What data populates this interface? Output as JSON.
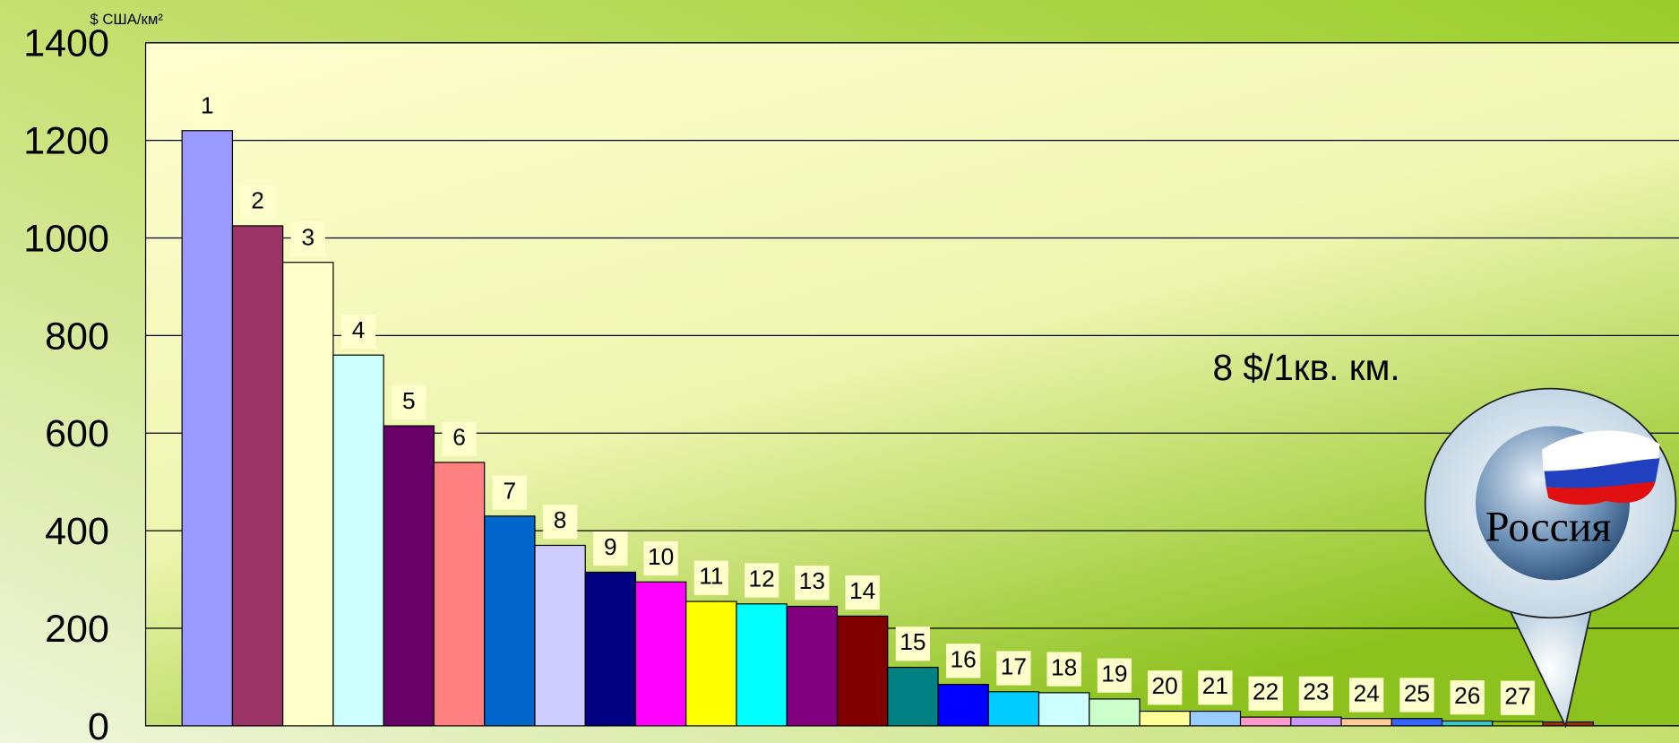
{
  "chart_data": {
    "type": "bar",
    "y_axis_label": "$ США/км²",
    "annotation": "8 $/1кв. км.",
    "callout": "Россия",
    "categories": [
      "1",
      "2",
      "3",
      "4",
      "5",
      "6",
      "7",
      "8",
      "9",
      "10",
      "11",
      "12",
      "13",
      "14",
      "15",
      "16",
      "17",
      "18",
      "19",
      "20",
      "21",
      "22",
      "23",
      "24",
      "25",
      "26",
      "27",
      null
    ],
    "values": [
      1220,
      1025,
      950,
      760,
      615,
      540,
      430,
      370,
      315,
      295,
      255,
      250,
      245,
      225,
      120,
      85,
      70,
      68,
      55,
      30,
      30,
      18,
      18,
      15,
      15,
      10,
      9,
      8
    ],
    "colors": [
      "#9999ff",
      "#993366",
      "#ffffcc",
      "#ccffff",
      "#660066",
      "#ff8080",
      "#0066cc",
      "#ccccff",
      "#000080",
      "#ff00ff",
      "#ffff00",
      "#00ffff",
      "#800080",
      "#800000",
      "#008080",
      "#0000ff",
      "#00ccff",
      "#ccffff",
      "#ccffcc",
      "#ffff99",
      "#99ccff",
      "#ff99cc",
      "#cc99ff",
      "#ffcc99",
      "#3366ff",
      "#33cccc",
      "#99cc00",
      "#993300"
    ],
    "ylim": [
      0,
      1400
    ],
    "yticks": [
      0,
      200,
      400,
      600,
      800,
      1000,
      1200,
      1400
    ],
    "grid": true
  }
}
